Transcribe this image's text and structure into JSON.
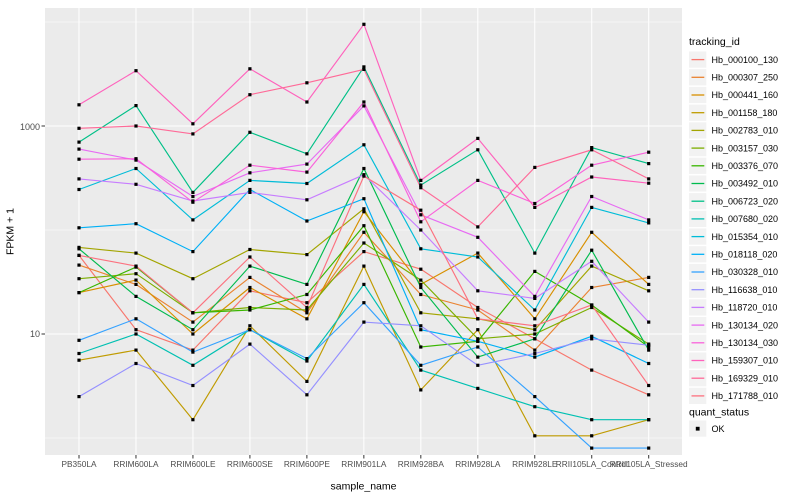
{
  "figure": {
    "background": "#FFFFFF",
    "panel_background": "#EBEBEB",
    "grid_color": "#FFFFFF",
    "tick_label_color": "#4D4D4D",
    "tick_mark_color": "#333333"
  },
  "y_axis": {
    "title": "FPKM + 1",
    "scale": "log10",
    "breaks": [
      {
        "label": "1000",
        "value": 1000
      },
      {
        "label": "10",
        "value": 10
      }
    ],
    "minor_breaks": [
      10000,
      100,
      1
    ]
  },
  "x_axis": {
    "title": "sample_name"
  },
  "legend": {
    "tracking_title": "tracking_id",
    "quant_title": "quant_status",
    "quant_items": [
      {
        "label": "OK",
        "marker": "black-square"
      }
    ]
  },
  "chart_data": {
    "type": "line",
    "title": "",
    "xlabel": "sample_name",
    "ylabel": "FPKM + 1",
    "y_scale": "log10",
    "y_breaks": [
      10,
      1000
    ],
    "y_minor_breaks": [
      1,
      100,
      10000
    ],
    "grid": true,
    "legend_position": "right",
    "point_marker": {
      "shape": "square",
      "color": "#000000",
      "meaning": "quant_status OK"
    },
    "categories": [
      "PB350LA",
      "RRIM600LA",
      "RRIM600LE",
      "RRIM600SE",
      "RRIM600PE",
      "RRIM901LA",
      "RRIM928BA",
      "RRIM928LA",
      "RRIM928LE",
      "RRII105LA_Control",
      "RRII105LA_Stressed"
    ],
    "series": [
      {
        "name": "Hb_000100_130",
        "color": "#F8766D",
        "values": [
          57,
          11,
          7,
          26,
          20,
          62,
          42,
          18,
          9,
          4.5,
          2.6
        ]
      },
      {
        "name": "Hb_000307_250",
        "color": "#EA8331",
        "values": [
          46,
          30,
          13,
          35,
          16,
          95,
          24,
          17,
          7,
          28,
          35
        ]
      },
      {
        "name": "Hb_000441_160",
        "color": "#D89000",
        "values": [
          25,
          33,
          10,
          28,
          14,
          150,
          30,
          60,
          14,
          95,
          30
        ]
      },
      {
        "name": "Hb_001158_180",
        "color": "#C09B00",
        "values": [
          5.6,
          7,
          1.5,
          12,
          3.5,
          45,
          2.9,
          11,
          1.05,
          1.05,
          1.5
        ]
      },
      {
        "name": "Hb_002783_010",
        "color": "#A3A500",
        "values": [
          68,
          60,
          34,
          65,
          58,
          160,
          16,
          14,
          11,
          45,
          26
        ]
      },
      {
        "name": "Hb_003157_030",
        "color": "#7CAE00",
        "values": [
          34,
          38,
          16,
          18,
          17,
          75,
          33,
          9,
          10,
          18,
          8
        ]
      },
      {
        "name": "Hb_003376_070",
        "color": "#39B600",
        "values": [
          25,
          44,
          16,
          17,
          24,
          110,
          7.5,
          8.5,
          40,
          19,
          7.5
        ]
      },
      {
        "name": "Hb_003492_010",
        "color": "#00BB4E",
        "values": [
          66,
          23,
          11,
          45,
          30,
          390,
          28,
          6,
          9,
          64,
          7
        ]
      },
      {
        "name": "Hb_006723_020",
        "color": "#00C087",
        "values": [
          700,
          1570,
          230,
          870,
          540,
          3700,
          270,
          590,
          60,
          620,
          435
        ]
      },
      {
        "name": "Hb_007680_020",
        "color": "#00C0B2",
        "values": [
          6.5,
          10,
          5,
          11,
          5.5,
          30,
          4.5,
          3,
          2,
          1.5,
          1.5
        ]
      },
      {
        "name": "Hb_015354_010",
        "color": "#00BCD8",
        "values": [
          245,
          390,
          125,
          300,
          280,
          660,
          66,
          55,
          17,
          165,
          117
        ]
      },
      {
        "name": "Hb_018118_020",
        "color": "#00B0F6",
        "values": [
          105,
          115,
          62,
          245,
          122,
          200,
          11,
          8.5,
          6,
          9.5,
          5.2
        ]
      },
      {
        "name": "Hb_030328_010",
        "color": "#35A2FF",
        "values": [
          8.7,
          14,
          6.7,
          11,
          5.8,
          20,
          5,
          7.5,
          2.5,
          0.8,
          0.8
        ]
      },
      {
        "name": "Hb_116638_010",
        "color": "#9590FF",
        "values": [
          2.5,
          5.2,
          3.2,
          8,
          2.6,
          13,
          12,
          5,
          6.5,
          9,
          7.8
        ]
      },
      {
        "name": "Hb_118720_010",
        "color": "#C77CFF",
        "values": [
          310,
          275,
          190,
          230,
          195,
          340,
          100,
          26,
          22,
          50,
          13
        ]
      },
      {
        "name": "Hb_130134_020",
        "color": "#E76BF3",
        "values": [
          600,
          470,
          210,
          355,
          430,
          1560,
          140,
          85,
          23,
          210,
          125
        ]
      },
      {
        "name": "Hb_130134_030",
        "color": "#FA62DB",
        "values": [
          480,
          485,
          185,
          420,
          360,
          1700,
          120,
          300,
          180,
          420,
          560
        ]
      },
      {
        "name": "Hb_159307_010",
        "color": "#FF62BC",
        "values": [
          1600,
          3400,
          1050,
          3550,
          1700,
          9500,
          300,
          760,
          165,
          323,
          282
        ]
      },
      {
        "name": "Hb_169329_010",
        "color": "#FF6A98",
        "values": [
          950,
          1000,
          840,
          2000,
          2600,
          3500,
          255,
          107,
          400,
          590,
          310
        ]
      },
      {
        "name": "Hb_171788_010",
        "color": "#FC717F",
        "values": [
          57,
          45,
          16,
          55,
          18,
          330,
          155,
          14,
          12,
          19,
          3.2
        ]
      }
    ]
  }
}
